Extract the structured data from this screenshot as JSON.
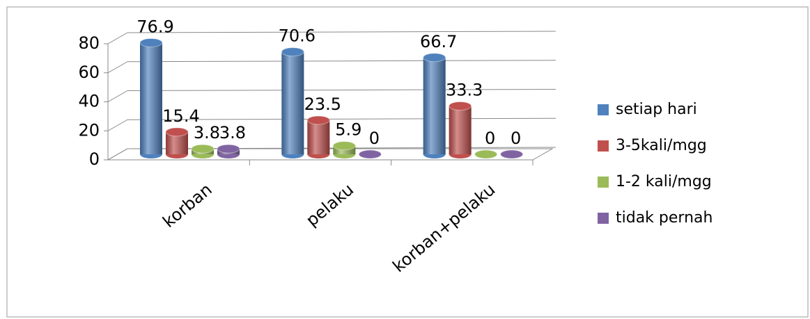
{
  "chart_data": {
    "type": "bar3d",
    "categories": [
      "korban",
      "pelaku",
      "korban+pelaku"
    ],
    "series": [
      {
        "name": "setiap hari",
        "color": "#4f81bd",
        "values": [
          76.9,
          70.6,
          66.7
        ]
      },
      {
        "name": "3-5kali/mgg",
        "color": "#c0504d",
        "values": [
          15.4,
          23.5,
          33.3
        ]
      },
      {
        "name": "1-2 kali/mgg",
        "color": "#9bbb59",
        "values": [
          3.8,
          5.9,
          0
        ]
      },
      {
        "name": "tidak pernah",
        "color": "#8064a2",
        "values": [
          3.8,
          0,
          0
        ]
      }
    ],
    "ylim": [
      0,
      80
    ],
    "yticks": [
      0,
      20,
      40,
      60,
      80
    ],
    "grid": true,
    "legend": "right"
  }
}
